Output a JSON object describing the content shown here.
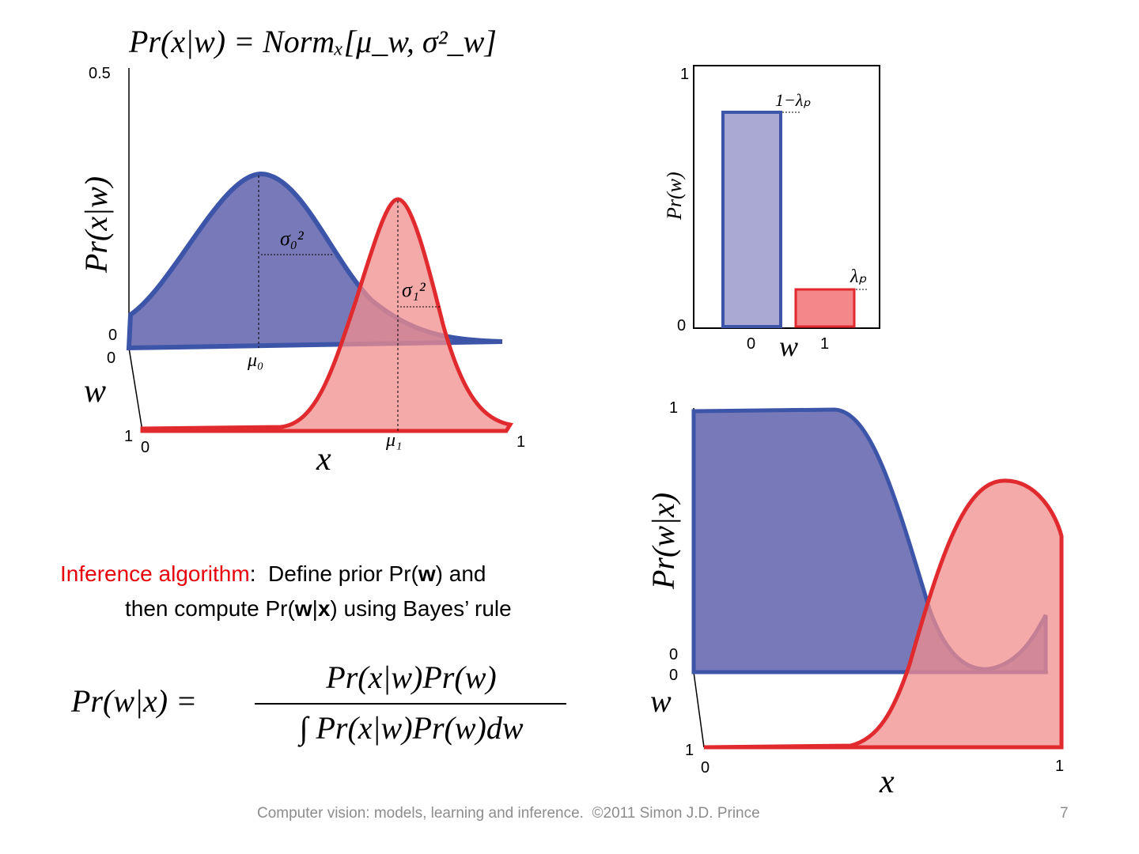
{
  "likelihood_plot": {
    "title": "Pr(x|w) = Normₓ[μ_w, σ²_w]",
    "y_label": "Pr(x|w)",
    "y_top": "0.5",
    "y_zero": "0",
    "w_zero": "0",
    "w_one": "1",
    "w_label": "w",
    "x_zero": "0",
    "x_one": "1",
    "x_label": "x",
    "mu0": "μ₀",
    "mu1": "μ₁",
    "sigma0": "σ₀²",
    "sigma1": "σ₁²"
  },
  "prior_plot": {
    "y_label": "Pr(w)",
    "y_top": "1",
    "y_zero": "0",
    "bar0_label": "1−λₚ",
    "bar1_label": "λₚ",
    "x_zero": "0",
    "x_one": "1",
    "x_label": "w"
  },
  "posterior_plot": {
    "y_label": "Pr(w|x)",
    "y_top": "1",
    "y_zero": "0",
    "w_zero": "0",
    "w_one": "1",
    "w_label": "w",
    "x_zero": "0",
    "x_one": "1",
    "x_label": "x"
  },
  "body": {
    "highlight": "Inference algorithm",
    "line1_a": ":  Define prior Pr(",
    "line1_bold": "w",
    "line1_b": ") and",
    "line2_a": "then compute Pr(",
    "line2_bold1": "w",
    "line2_bar": "|",
    "line2_bold2": "x",
    "line2_b": ") using Bayes’ rule"
  },
  "formula": {
    "lhs": "Pr(w|x) =",
    "numerator": "Pr(x|w)Pr(w)",
    "denominator": "∫ Pr(x|w)Pr(w)dw"
  },
  "footer": {
    "credit": "Computer vision: models, learning and inference.  ©2011 Simon J.D. Prince",
    "page": "7"
  }
}
